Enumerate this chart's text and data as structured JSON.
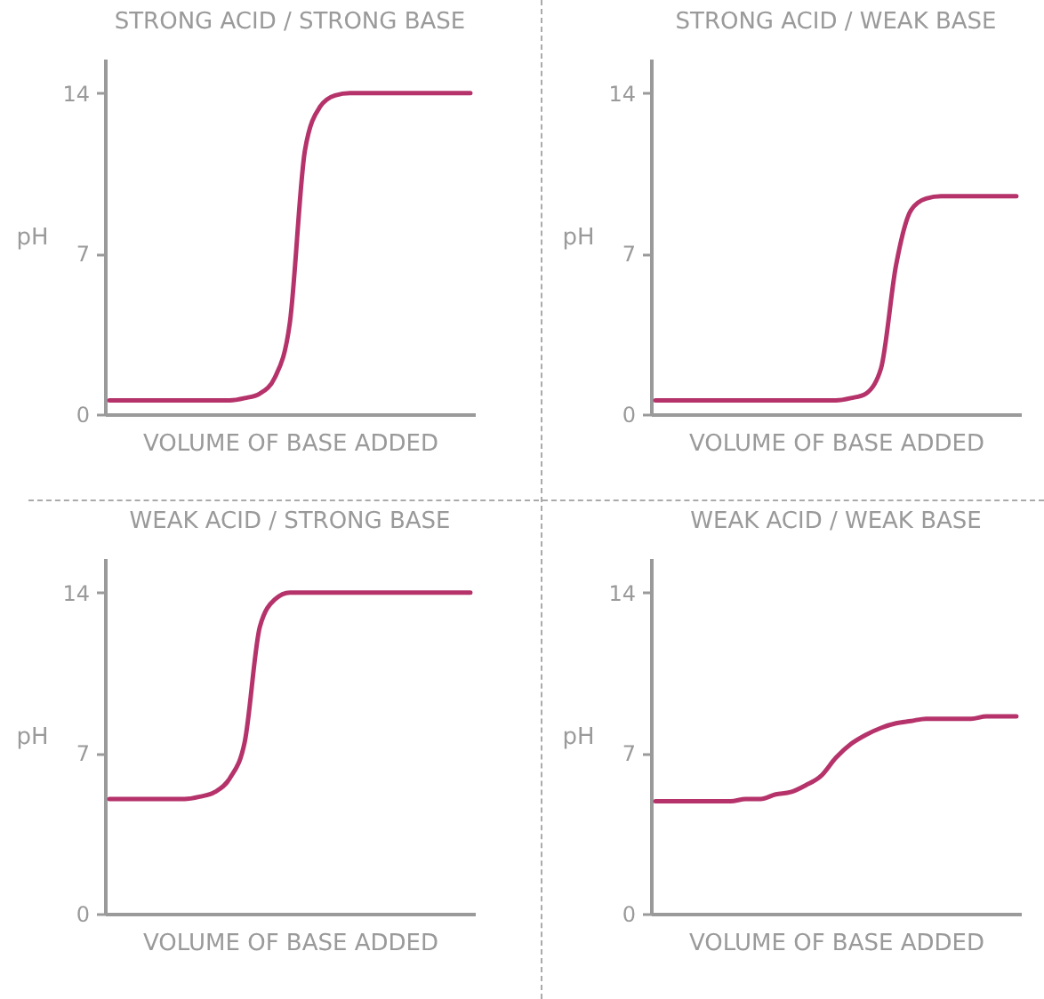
{
  "chart_data": [
    {
      "type": "line",
      "title": "STRONG ACID / STRONG BASE",
      "xlabel": "VOLUME OF BASE ADDED",
      "ylabel": "pH",
      "tick_labels": "y",
      "ylim": [
        0,
        15.5
      ],
      "yticks": [
        0,
        7,
        14
      ],
      "categories": [
        null,
        null,
        null,
        null,
        null,
        null,
        null,
        null,
        null,
        null,
        null,
        null,
        null,
        null,
        null,
        null,
        null,
        null,
        null,
        null,
        null,
        null,
        null,
        null,
        null
      ],
      "series": [
        {
          "color": "#b5336a",
          "values": [
            0.6,
            0.6,
            0.6,
            0.6,
            0.6,
            0.6,
            0.6,
            0.6,
            0.6,
            0.7,
            0.9,
            1.6,
            4,
            11.5,
            13.4,
            13.9,
            14,
            14,
            14,
            14,
            14,
            14,
            14,
            14,
            14
          ]
        }
      ]
    },
    {
      "type": "line",
      "title": "STRONG ACID / WEAK BASE",
      "xlabel": "VOLUME OF BASE ADDED",
      "ylabel": "pH",
      "tick_labels": "y",
      "ylim": [
        0,
        15.5
      ],
      "yticks": [
        0,
        7,
        14
      ],
      "categories": [
        null,
        null,
        null,
        null,
        null,
        null,
        null,
        null,
        null,
        null,
        null,
        null,
        null,
        null,
        null,
        null,
        null,
        null,
        null,
        null,
        null,
        null,
        null,
        null,
        null
      ],
      "series": [
        {
          "color": "#b5336a",
          "values": [
            0.6,
            0.6,
            0.6,
            0.6,
            0.6,
            0.6,
            0.6,
            0.6,
            0.6,
            0.6,
            0.6,
            0.6,
            0.6,
            0.7,
            0.9,
            2,
            6.5,
            8.9,
            9.4,
            9.5,
            9.5,
            9.5,
            9.5,
            9.5,
            9.5
          ]
        }
      ]
    },
    {
      "type": "line",
      "title": "WEAK ACID / STRONG BASE",
      "xlabel": "VOLUME OF BASE ADDED",
      "ylabel": "pH",
      "tick_labels": "y",
      "ylim": [
        0,
        15.5
      ],
      "yticks": [
        0,
        7,
        14
      ],
      "categories": [
        null,
        null,
        null,
        null,
        null,
        null,
        null,
        null,
        null,
        null,
        null,
        null,
        null,
        null,
        null,
        null,
        null,
        null,
        null,
        null,
        null,
        null,
        null,
        null,
        null
      ],
      "series": [
        {
          "color": "#b5336a",
          "values": [
            5,
            5,
            5,
            5,
            5,
            5,
            5.1,
            5.3,
            5.9,
            7.5,
            12.5,
            13.7,
            14,
            14,
            14,
            14,
            14,
            14,
            14,
            14,
            14,
            14,
            14,
            14,
            14
          ]
        }
      ]
    },
    {
      "type": "line",
      "title": "WEAK ACID / WEAK BASE",
      "xlabel": "VOLUME OF BASE ADDED",
      "ylabel": "pH",
      "tick_labels": "y",
      "ylim": [
        0,
        15.5
      ],
      "yticks": [
        0,
        7,
        14
      ],
      "categories": [
        null,
        null,
        null,
        null,
        null,
        null,
        null,
        null,
        null,
        null,
        null,
        null,
        null,
        null,
        null,
        null,
        null,
        null,
        null,
        null,
        null,
        null,
        null,
        null,
        null
      ],
      "series": [
        {
          "color": "#b5336a",
          "values": [
            4.9,
            4.9,
            4.9,
            4.9,
            4.9,
            4.9,
            5,
            5,
            5.2,
            5.3,
            5.6,
            6,
            6.8,
            7.4,
            7.8,
            8.1,
            8.3,
            8.4,
            8.5,
            8.5,
            8.5,
            8.5,
            8.6,
            8.6,
            8.6
          ]
        }
      ]
    }
  ]
}
